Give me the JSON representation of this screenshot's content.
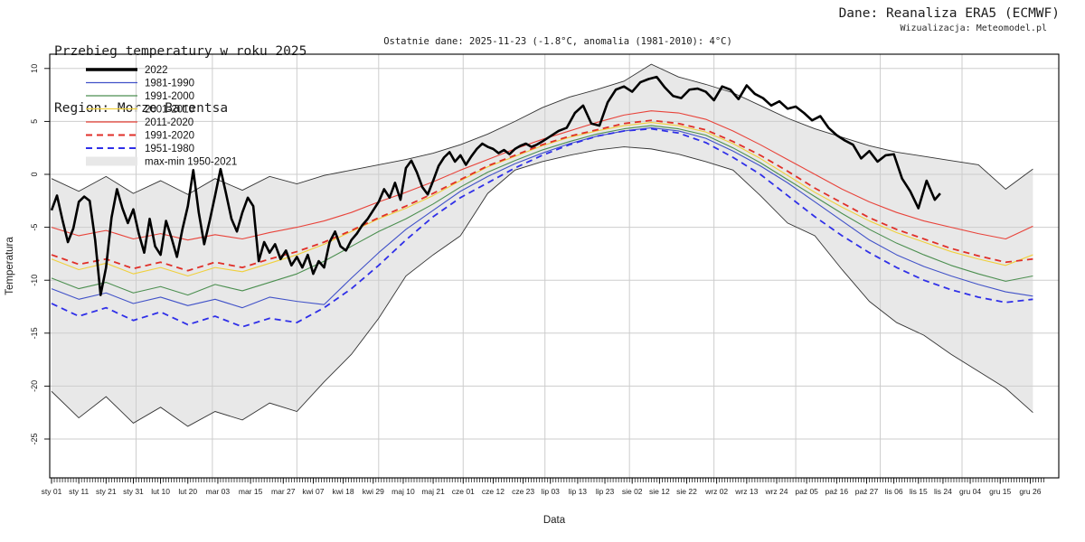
{
  "header": {
    "title": "Przebieg temperatury w roku 2025",
    "region": "Region: Morze Barentsa",
    "source": "Dane: Reanaliza ERA5 (ECMWF)",
    "credit": "Wizualizacja: Meteomodel.pl",
    "subtitle": "Ostatnie dane: 2025-11-23 (-1.8°C, anomalia (1981-2010): 4°C)"
  },
  "axes": {
    "xlabel": "Data",
    "ylabel": "Temperatura",
    "yticks": [
      10,
      5,
      0,
      -5,
      -10,
      -15,
      -20,
      -25
    ],
    "xticks": [
      {
        "label": "sty 01",
        "day": 1
      },
      {
        "label": "sty 11",
        "day": 11
      },
      {
        "label": "sty 21",
        "day": 21
      },
      {
        "label": "sty 31",
        "day": 31
      },
      {
        "label": "lut 10",
        "day": 41
      },
      {
        "label": "lut 20",
        "day": 51
      },
      {
        "label": "mar 03",
        "day": 62
      },
      {
        "label": "mar 15",
        "day": 74
      },
      {
        "label": "mar 27",
        "day": 86
      },
      {
        "label": "kwi 07",
        "day": 97
      },
      {
        "label": "kwi 18",
        "day": 108
      },
      {
        "label": "kwi 29",
        "day": 119
      },
      {
        "label": "maj 10",
        "day": 130
      },
      {
        "label": "maj 21",
        "day": 141
      },
      {
        "label": "cze 01",
        "day": 152
      },
      {
        "label": "cze 12",
        "day": 163
      },
      {
        "label": "cze 23",
        "day": 174
      },
      {
        "label": "lip 03",
        "day": 184
      },
      {
        "label": "lip 13",
        "day": 194
      },
      {
        "label": "lip 23",
        "day": 204
      },
      {
        "label": "sie 02",
        "day": 214
      },
      {
        "label": "sie 12",
        "day": 224
      },
      {
        "label": "sie 22",
        "day": 234
      },
      {
        "label": "wrz 02",
        "day": 245
      },
      {
        "label": "wrz 13",
        "day": 256
      },
      {
        "label": "wrz 24",
        "day": 267
      },
      {
        "label": "paź 05",
        "day": 278
      },
      {
        "label": "paź 16",
        "day": 289
      },
      {
        "label": "paź 27",
        "day": 300
      },
      {
        "label": "lis 06",
        "day": 310
      },
      {
        "label": "lis 15",
        "day": 319
      },
      {
        "label": "lis 24",
        "day": 328
      },
      {
        "label": "gru 04",
        "day": 338
      },
      {
        "label": "gru 15",
        "day": 349
      },
      {
        "label": "gru 26",
        "day": 360
      }
    ]
  },
  "legend": [
    {
      "label": "2022",
      "color": "#000000",
      "width": 3.6
    },
    {
      "label": "1981-1990",
      "color": "#4152c8",
      "width": 1.3
    },
    {
      "label": "1991-2000",
      "color": "#4c8f50",
      "width": 1.3
    },
    {
      "label": "2001-2010",
      "color": "#f0d03c",
      "width": 1.3
    },
    {
      "label": "2011-2020",
      "color": "#e8433a",
      "width": 1.3
    },
    {
      "label": "1991-2020",
      "color": "#e02f28",
      "width": 2.0,
      "dash": "7 5"
    },
    {
      "label": "1951-1980",
      "color": "#2f2fe8",
      "width": 2.0,
      "dash": "7 5"
    },
    {
      "label": "max-min 1950-2021",
      "patch": true,
      "color": "#e8e8e8"
    }
  ],
  "chart_data": {
    "type": "line",
    "title": "Przebieg temperatury w roku 2025",
    "xlabel": "Data",
    "ylabel": "Temperatura",
    "ylim": [
      -28.7,
      11.3
    ],
    "x_unit": "day_of_year",
    "grid": true,
    "legend_position": "top-left",
    "month_start_days": [
      32,
      60,
      91,
      121,
      152,
      182,
      213,
      244,
      274,
      305,
      335
    ],
    "style": {
      "band_fill": "#e8e8e8",
      "grid_color": "#cdcdcd",
      "envelope_color": "#333333",
      "text_color": "#1c1c1c"
    },
    "x_decade": [
      1,
      11,
      21,
      31,
      41,
      51,
      61,
      71,
      81,
      91,
      101,
      111,
      121,
      131,
      141,
      151,
      161,
      171,
      181,
      191,
      201,
      211,
      221,
      231,
      241,
      251,
      261,
      271,
      281,
      291,
      301,
      311,
      321,
      331,
      341,
      351,
      361
    ],
    "band": {
      "name": "max-min 1950-2021",
      "max": [
        -0.4,
        -1.6,
        -0.2,
        -1.8,
        -0.6,
        -1.9,
        -0.4,
        -1.5,
        -0.2,
        -0.9,
        -0.1,
        0.4,
        0.9,
        1.4,
        2.0,
        2.8,
        3.8,
        5.0,
        6.3,
        7.3,
        8.0,
        8.8,
        10.4,
        9.2,
        8.5,
        7.7,
        6.5,
        5.3,
        4.3,
        3.5,
        2.7,
        2.1,
        1.7,
        1.3,
        0.9,
        -1.4,
        0.5
      ],
      "min": [
        -20.5,
        -23.0,
        -21.0,
        -23.5,
        -22.0,
        -23.8,
        -22.4,
        -23.2,
        -21.6,
        -22.4,
        -19.6,
        -17.0,
        -13.6,
        -9.6,
        -7.6,
        -5.8,
        -1.8,
        0.4,
        1.2,
        1.8,
        2.3,
        2.6,
        2.4,
        1.9,
        1.2,
        0.4,
        -2.0,
        -4.6,
        -5.8,
        -9.0,
        -12.0,
        -14.0,
        -15.2,
        -17.0,
        -18.6,
        -20.2,
        -22.5
      ]
    },
    "series": [
      {
        "name": "1981-1990",
        "color": "#4152c8",
        "width": 1.1,
        "values": [
          -10.8,
          -11.8,
          -11.2,
          -12.2,
          -11.6,
          -12.4,
          -11.8,
          -12.6,
          -11.6,
          -12.0,
          -12.3,
          -9.8,
          -7.4,
          -5.2,
          -3.4,
          -1.6,
          -0.2,
          1.0,
          2.0,
          2.9,
          3.6,
          4.1,
          4.4,
          4.1,
          3.4,
          2.2,
          0.8,
          -0.8,
          -2.6,
          -4.4,
          -6.2,
          -7.6,
          -8.7,
          -9.6,
          -10.4,
          -11.1,
          -11.5
        ]
      },
      {
        "name": "1991-2000",
        "color": "#4c8f50",
        "width": 1.1,
        "values": [
          -9.8,
          -10.8,
          -10.2,
          -11.2,
          -10.6,
          -11.4,
          -10.4,
          -11.0,
          -10.2,
          -9.4,
          -8.2,
          -6.8,
          -5.4,
          -4.2,
          -2.8,
          -1.2,
          0.2,
          1.3,
          2.3,
          3.1,
          3.8,
          4.3,
          4.6,
          4.3,
          3.7,
          2.5,
          1.1,
          -0.5,
          -2.1,
          -3.7,
          -5.2,
          -6.5,
          -7.6,
          -8.6,
          -9.4,
          -10.1,
          -9.6
        ]
      },
      {
        "name": "2001-2010",
        "color": "#f0d03c",
        "width": 1.1,
        "values": [
          -8.0,
          -9.0,
          -8.4,
          -9.4,
          -8.8,
          -9.6,
          -8.8,
          -9.2,
          -8.4,
          -7.6,
          -6.6,
          -5.4,
          -4.2,
          -3.2,
          -2.0,
          -0.6,
          0.7,
          1.7,
          2.7,
          3.5,
          4.1,
          4.6,
          4.9,
          4.6,
          4.0,
          2.9,
          1.5,
          -0.1,
          -1.7,
          -3.1,
          -4.4,
          -5.5,
          -6.4,
          -7.3,
          -8.0,
          -8.6,
          -7.6
        ]
      },
      {
        "name": "2011-2020",
        "color": "#e8433a",
        "width": 1.1,
        "values": [
          -5.0,
          -5.8,
          -5.3,
          -6.1,
          -5.6,
          -6.2,
          -5.7,
          -6.1,
          -5.5,
          -5.0,
          -4.4,
          -3.6,
          -2.6,
          -1.7,
          -0.7,
          0.4,
          1.4,
          2.4,
          3.3,
          4.1,
          4.9,
          5.6,
          6.0,
          5.8,
          5.2,
          4.1,
          2.8,
          1.4,
          0.0,
          -1.4,
          -2.6,
          -3.6,
          -4.4,
          -5.0,
          -5.6,
          -6.1,
          -4.9
        ]
      },
      {
        "name": "1991-2020",
        "color": "#e02f28",
        "width": 1.8,
        "dash": "7 5",
        "values": [
          -7.6,
          -8.5,
          -8.0,
          -8.9,
          -8.3,
          -9.1,
          -8.3,
          -8.8,
          -8.0,
          -7.3,
          -6.4,
          -5.3,
          -4.1,
          -3.0,
          -1.8,
          -0.5,
          0.8,
          1.8,
          2.8,
          3.6,
          4.2,
          4.8,
          5.1,
          4.8,
          4.2,
          3.1,
          1.8,
          0.3,
          -1.3,
          -2.7,
          -4.1,
          -5.2,
          -6.1,
          -7.0,
          -7.7,
          -8.3,
          -8.0
        ]
      },
      {
        "name": "1951-1980",
        "color": "#2f2fe8",
        "width": 1.8,
        "dash": "7 5",
        "values": [
          -12.2,
          -13.4,
          -12.6,
          -13.8,
          -13.0,
          -14.2,
          -13.4,
          -14.4,
          -13.6,
          -14.0,
          -12.6,
          -10.8,
          -8.6,
          -6.2,
          -4.0,
          -2.2,
          -0.8,
          0.6,
          1.8,
          2.8,
          3.6,
          4.1,
          4.3,
          3.9,
          3.0,
          1.6,
          0.0,
          -2.0,
          -4.0,
          -5.8,
          -7.4,
          -8.8,
          -10.0,
          -10.9,
          -11.6,
          -12.1,
          -11.8
        ]
      },
      {
        "name": "2022",
        "color": "#000000",
        "width": 2.6,
        "days": [
          1,
          3,
          5,
          7,
          9,
          11,
          13,
          15,
          17,
          19,
          21,
          23,
          25,
          27,
          29,
          31,
          33,
          35,
          37,
          39,
          41,
          43,
          45,
          47,
          49,
          51,
          53,
          55,
          57,
          59,
          61,
          63,
          65,
          67,
          69,
          71,
          73,
          75,
          77,
          79,
          81,
          83,
          85,
          87,
          89,
          91,
          93,
          95,
          97,
          99,
          101,
          103,
          105,
          107,
          109,
          111,
          113,
          115,
          117,
          119,
          121,
          123,
          125,
          127,
          129,
          131,
          133,
          135,
          137,
          139,
          141,
          143,
          145,
          147,
          149,
          151,
          153,
          155,
          157,
          159,
          161,
          163,
          165,
          167,
          169,
          171,
          173,
          175,
          177,
          179,
          181,
          184,
          187,
          190,
          193,
          196,
          199,
          202,
          205,
          208,
          211,
          214,
          217,
          220,
          223,
          226,
          229,
          232,
          235,
          238,
          241,
          244,
          247,
          250,
          253,
          256,
          259,
          262,
          265,
          268,
          271,
          274,
          277,
          280,
          283,
          286,
          289,
          292,
          295,
          298,
          301,
          304,
          307,
          310,
          313,
          316,
          319,
          322,
          325,
          327
        ],
        "values": [
          -3.4,
          -2.0,
          -4.3,
          -6.4,
          -5.1,
          -2.6,
          -2.1,
          -2.5,
          -6.2,
          -11.4,
          -8.8,
          -4.1,
          -1.4,
          -3.2,
          -4.6,
          -3.3,
          -5.6,
          -7.4,
          -4.2,
          -6.8,
          -7.6,
          -4.4,
          -6.0,
          -7.8,
          -5.2,
          -3.0,
          0.4,
          -3.6,
          -6.6,
          -4.4,
          -2.0,
          0.5,
          -1.8,
          -4.2,
          -5.4,
          -3.6,
          -2.2,
          -3.0,
          -8.2,
          -6.4,
          -7.4,
          -6.6,
          -8.0,
          -7.2,
          -8.6,
          -7.8,
          -8.8,
          -7.6,
          -9.4,
          -8.2,
          -8.8,
          -6.4,
          -5.4,
          -6.8,
          -7.2,
          -6.2,
          -5.6,
          -4.8,
          -4.2,
          -3.4,
          -2.6,
          -1.4,
          -2.2,
          -0.8,
          -2.4,
          0.6,
          1.3,
          0.2,
          -1.2,
          -1.9,
          -0.6,
          0.8,
          1.6,
          2.1,
          1.2,
          1.8,
          0.9,
          1.7,
          2.4,
          2.9,
          2.6,
          2.4,
          2.0,
          2.3,
          1.9,
          2.4,
          2.7,
          2.9,
          2.6,
          2.8,
          3.1,
          3.6,
          4.1,
          4.4,
          5.8,
          6.5,
          4.8,
          4.6,
          6.8,
          8.0,
          8.3,
          7.8,
          8.7,
          9.0,
          9.2,
          8.2,
          7.4,
          7.2,
          8.0,
          8.1,
          7.8,
          7.0,
          8.3,
          8.0,
          7.1,
          8.4,
          7.6,
          7.2,
          6.5,
          6.9,
          6.2,
          6.4,
          5.8,
          5.1,
          5.5,
          4.4,
          3.7,
          3.2,
          2.8,
          1.5,
          2.2,
          1.2,
          1.8,
          1.9,
          -0.4,
          -1.6,
          -3.2,
          -0.6,
          -2.4,
          -1.8
        ]
      }
    ]
  }
}
